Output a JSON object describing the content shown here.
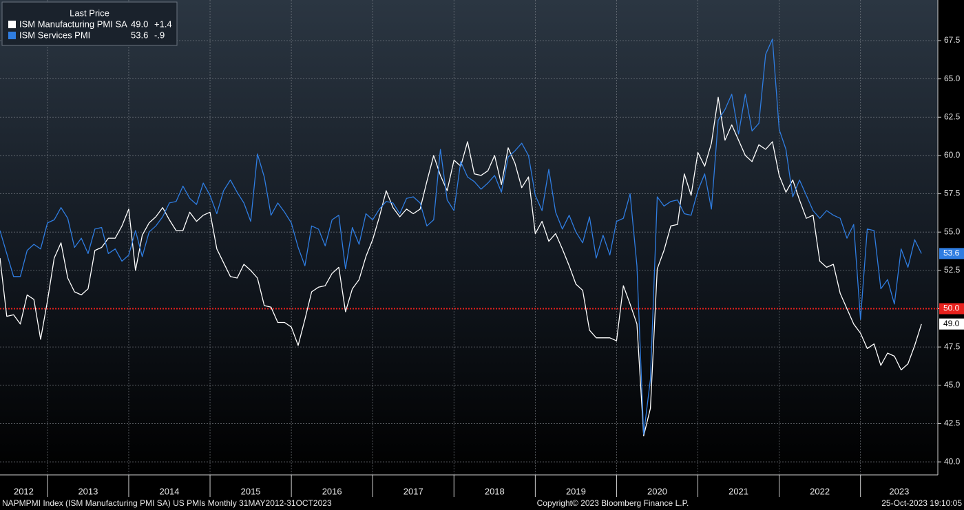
{
  "chart_data": {
    "type": "line",
    "legend_title": "Last Price",
    "years": [
      2012,
      2013,
      2014,
      2015,
      2016,
      2017,
      2018,
      2019,
      2020,
      2021,
      2022,
      2023
    ],
    "ylim": [
      39.15,
      70.15
    ],
    "yticks": [
      {
        "value": 40,
        "label": "40.0"
      },
      42.5,
      {
        "value": 45,
        "label": "45.0"
      },
      47.5,
      {
        "value": 50,
        "label": "50.0"
      },
      52.5,
      {
        "value": 55,
        "label": "55.0"
      },
      57.5,
      {
        "value": 60,
        "label": "60.0"
      },
      62.5,
      {
        "value": 65,
        "label": "65.0"
      },
      67.5
    ],
    "grid": true,
    "reference_line": {
      "value": 50,
      "label": "50.0",
      "color": "#e8211d"
    },
    "series": [
      {
        "name": "ISM Manufacturing PMI SA",
        "color": "#ffffff",
        "last_price": "49.0",
        "change": "+1.4",
        "values": [
          53.3,
          49.5,
          49.6,
          49.0,
          50.9,
          50.6,
          48.0,
          50.5,
          53.3,
          54.3,
          52.0,
          51.1,
          50.9,
          51.3,
          53.8,
          54.0,
          54.6,
          54.6,
          55.4,
          56.5,
          52.5,
          54.8,
          55.6,
          56.0,
          56.6,
          55.8,
          55.1,
          55.1,
          56.3,
          55.7,
          56.1,
          56.3,
          53.9,
          53.0,
          52.1,
          52.0,
          52.9,
          52.5,
          52.0,
          50.2,
          50.1,
          49.1,
          49.1,
          48.8,
          47.6,
          49.3,
          51.1,
          51.4,
          51.5,
          52.3,
          52.7,
          49.8,
          51.3,
          51.9,
          53.4,
          54.5,
          56.0,
          57.7,
          56.6,
          56.0,
          56.5,
          56.2,
          56.5,
          58.3,
          60.0,
          58.7,
          57.7,
          59.7,
          59.3,
          60.9,
          58.8,
          58.7,
          59.0,
          60.0,
          58.1,
          60.5,
          59.5,
          57.9,
          58.6,
          54.9,
          55.7,
          54.4,
          54.9,
          53.9,
          52.8,
          51.6,
          51.2,
          48.6,
          48.1,
          48.1,
          48.1,
          47.9,
          51.5,
          50.3,
          49.0,
          41.7,
          43.5,
          52.6,
          53.8,
          55.4,
          55.5,
          58.8,
          57.4,
          60.2,
          59.3,
          60.8,
          63.8,
          61.0,
          62.0,
          61.0,
          60.0,
          59.6,
          60.7,
          60.4,
          60.9,
          58.7,
          57.6,
          58.4,
          57.1,
          55.9,
          56.1,
          53.1,
          52.7,
          52.9,
          51.0,
          50.0,
          49.0,
          48.4,
          47.4,
          47.7,
          46.3,
          47.1,
          46.9,
          46.0,
          46.4,
          47.6,
          49.0
        ]
      },
      {
        "name": "ISM Services PMI",
        "color": "#2f7de1",
        "last_price": "53.6",
        "change": "-.9",
        "values": [
          55.1,
          53.6,
          52.1,
          52.1,
          53.8,
          54.2,
          53.9,
          55.6,
          55.8,
          56.6,
          55.9,
          54.0,
          54.6,
          53.6,
          55.2,
          55.3,
          53.6,
          53.9,
          53.1,
          53.5,
          55.1,
          53.4,
          55.0,
          55.4,
          56.0,
          56.9,
          57.0,
          58.0,
          57.2,
          56.8,
          58.2,
          57.4,
          56.2,
          57.7,
          58.4,
          57.6,
          56.9,
          55.7,
          60.1,
          58.6,
          56.1,
          56.9,
          56.3,
          55.6,
          54.0,
          52.8,
          55.4,
          55.2,
          54.1,
          55.8,
          56.1,
          52.6,
          55.3,
          54.2,
          56.2,
          55.8,
          56.5,
          57.0,
          56.9,
          56.2,
          57.2,
          57.3,
          56.9,
          55.4,
          55.8,
          60.4,
          57.1,
          56.4,
          59.6,
          58.6,
          58.3,
          57.8,
          58.2,
          58.7,
          57.6,
          59.9,
          60.3,
          60.8,
          60.0,
          57.4,
          56.4,
          59.1,
          56.3,
          55.2,
          56.1,
          55.0,
          54.3,
          56.0,
          53.3,
          54.8,
          53.5,
          55.7,
          55.9,
          57.5,
          52.8,
          41.8,
          45.4,
          57.3,
          56.7,
          57.0,
          57.1,
          56.2,
          56.1,
          57.7,
          58.8,
          56.5,
          62.3,
          63.0,
          64.0,
          61.4,
          64.0,
          61.6,
          62.1,
          66.6,
          67.6,
          61.7,
          60.4,
          57.3,
          58.4,
          57.4,
          56.4,
          55.9,
          56.4,
          56.1,
          55.9,
          54.6,
          55.5,
          49.3,
          55.2,
          55.1,
          51.3,
          51.9,
          50.3,
          53.9,
          52.7,
          54.5,
          53.6
        ]
      }
    ],
    "footer_left": "NAPMPMI Index (ISM Manufacturing PMI SA) US PMIs  Monthly 31MAY2012-31OCT2023",
    "footer_center": "Copyright© 2023 Bloomberg Finance L.P.",
    "footer_right": "25-Oct-2023 19:10:05"
  }
}
